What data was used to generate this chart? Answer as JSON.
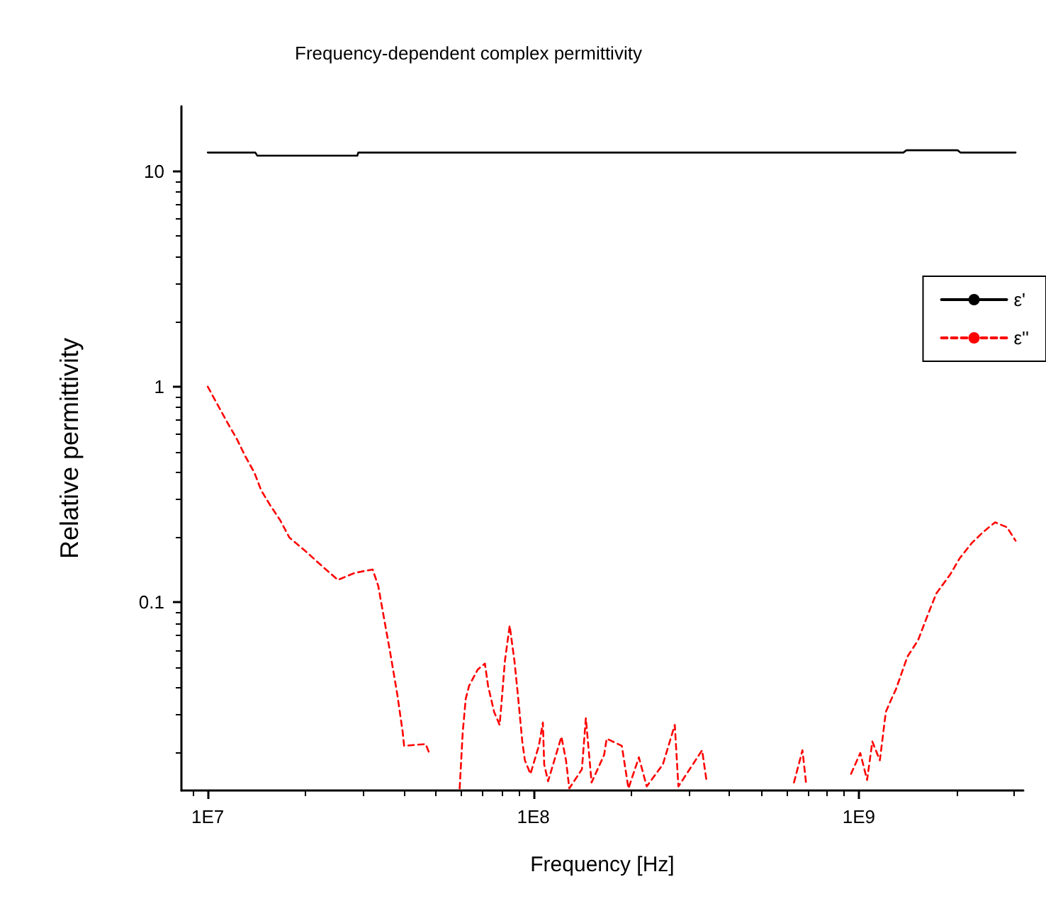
{
  "chart_data": {
    "type": "line",
    "title": "Frequency-dependent complex permittivity",
    "xlabel": "Frequency [Hz]",
    "ylabel": "Relative permittivity",
    "log": "xy",
    "xlim": [
      8300000,
      3200000000
    ],
    "xticks": [
      {
        "value": 10000000,
        "label": "1E7"
      },
      {
        "value": 100000000,
        "label": "1E8"
      },
      {
        "value": 1000000000,
        "label": "1E9"
      }
    ],
    "ylim": [
      0.0134,
      20
    ],
    "yticks": [
      0.1,
      1,
      10
    ],
    "grid": false,
    "legend": "right",
    "marker": "none",
    "series": [
      {
        "name": "ε'",
        "color": "#000000",
        "line_style": "solid",
        "x": [
          10000000,
          14000000,
          14200000,
          28800000,
          29000000,
          1370000000,
          1400000000,
          2010000000,
          2050000000,
          3030000000
        ],
        "values": [
          12.2,
          12.2,
          11.8,
          11.8,
          12.2,
          12.2,
          12.5,
          12.5,
          12.2,
          12.2
        ]
      },
      {
        "name": "ε''",
        "color": "#ff0000",
        "line_style": "dashed",
        "x": [
          10000000,
          10700000,
          11500000,
          12300000,
          13000000,
          13900000,
          14600000,
          15600000,
          16700000,
          17800000,
          20200000,
          22700000,
          25100000,
          28300000,
          32100000,
          33400000,
          34800000,
          36300000,
          38200000,
          39700000,
          40100000,
          46700000,
          48200000,
          52000000,
          59400000,
          60700000,
          62000000,
          63500000,
          67500000,
          71000000,
          72600000,
          75800000,
          78800000,
          79700000,
          81800000,
          84600000,
          87500000,
          89600000,
          92500000,
          94200000,
          98000000,
          104000000,
          107000000,
          108000000,
          111000000,
          122000000,
          126000000,
          129000000,
          141000000,
          145000000,
          151000000,
          165000000,
          168000000,
          187000000,
          196000000,
          211000000,
          223000000,
          250000000,
          272000000,
          279000000,
          330000000,
          341000000,
          450000000,
          632000000,
          671000000,
          688000000,
          800000000,
          946000000,
          1010000000,
          1060000000,
          1100000000,
          1160000000,
          1210000000,
          1260000000,
          1300000000,
          1360000000,
          1410000000,
          1520000000,
          1640000000,
          1730000000,
          1910000000,
          2040000000,
          2220000000,
          2410000000,
          2620000000,
          2850000000,
          3030000000
        ],
        "values": [
          1.0,
          0.83,
          0.68,
          0.57,
          0.48,
          0.4,
          0.33,
          0.28,
          0.24,
          0.2,
          0.17,
          0.145,
          0.127,
          0.137,
          0.142,
          0.119,
          0.084,
          0.059,
          0.0375,
          0.025,
          0.0216,
          0.022,
          0.0195,
          null,
          0.0137,
          0.025,
          0.0357,
          0.041,
          0.0488,
          0.052,
          0.041,
          0.031,
          0.027,
          0.033,
          0.0535,
          0.078,
          0.0535,
          0.0376,
          0.0226,
          0.0185,
          0.016,
          0.0216,
          0.0277,
          0.0177,
          0.0148,
          0.0238,
          0.0185,
          0.0137,
          0.0168,
          0.029,
          0.0146,
          0.0196,
          0.0233,
          0.0216,
          0.0137,
          0.0191,
          0.014,
          0.0177,
          0.027,
          0.014,
          0.0206,
          0.0146,
          null,
          0.0146,
          0.0206,
          0.0146,
          null,
          0.016,
          0.02,
          0.015,
          0.0226,
          0.0185,
          0.031,
          0.0357,
          0.0395,
          0.048,
          0.056,
          0.0667,
          0.09,
          0.11,
          0.135,
          0.16,
          0.188,
          0.212,
          0.235,
          0.223,
          0.193
        ]
      }
    ]
  }
}
